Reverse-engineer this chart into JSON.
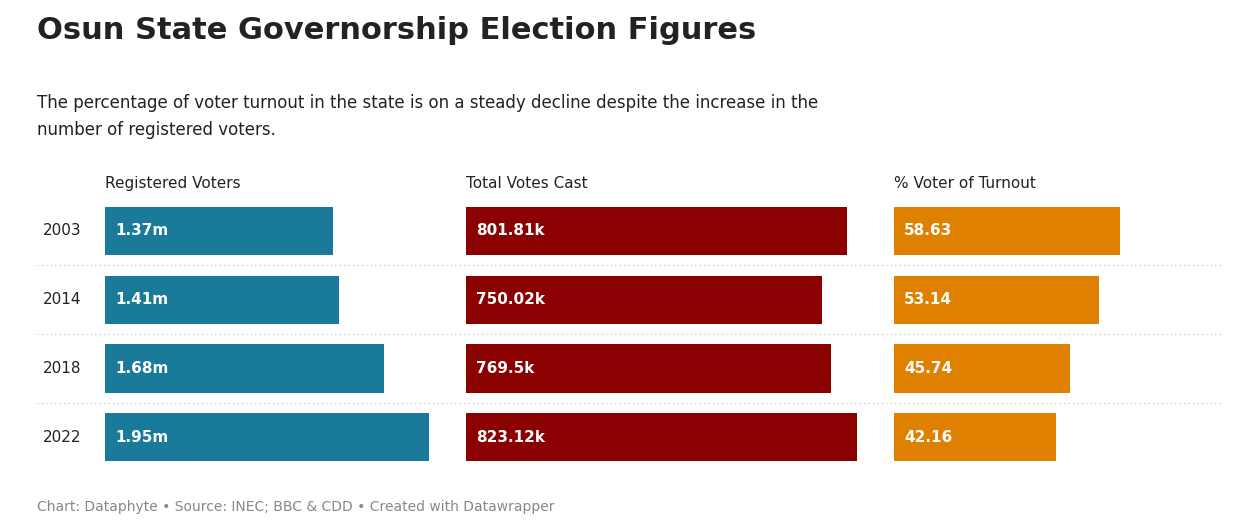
{
  "title": "Osun State Governorship Election Figures",
  "subtitle": "The percentage of voter turnout in the state is on a steady decline despite the increase in the\nnumber of registered voters.",
  "footer": "Chart: Dataphyte • Source: INEC; BBC & CDD • Created with Datawrapper",
  "years": [
    "2003",
    "2014",
    "2018",
    "2022"
  ],
  "col_headers": [
    "Registered Voters",
    "Total Votes Cast",
    "% Voter of Turnout"
  ],
  "registered_voters": [
    1.37,
    1.41,
    1.68,
    1.95
  ],
  "registered_voters_max": 1.95,
  "registered_labels": [
    "1.37m",
    "1.41m",
    "1.68m",
    "1.95m"
  ],
  "votes_cast": [
    801.81,
    750.02,
    769.5,
    823.12
  ],
  "votes_cast_max": 823.12,
  "votes_labels": [
    "801.81k",
    "750.02k",
    "769.5k",
    "823.12k"
  ],
  "turnout_pct": [
    58.63,
    53.14,
    45.74,
    42.16
  ],
  "turnout_max": 100,
  "turnout_labels": [
    "58.63",
    "53.14",
    "45.74",
    "42.16"
  ],
  "color_registered": "#1a7a9a",
  "color_votes": "#8b0000",
  "color_turnout": "#e08000",
  "background_color": "#ffffff",
  "text_color": "#222222",
  "label_color": "#ffffff",
  "title_fontsize": 22,
  "subtitle_fontsize": 12,
  "header_fontsize": 11,
  "bar_label_fontsize": 11,
  "year_fontsize": 11,
  "footer_fontsize": 10
}
